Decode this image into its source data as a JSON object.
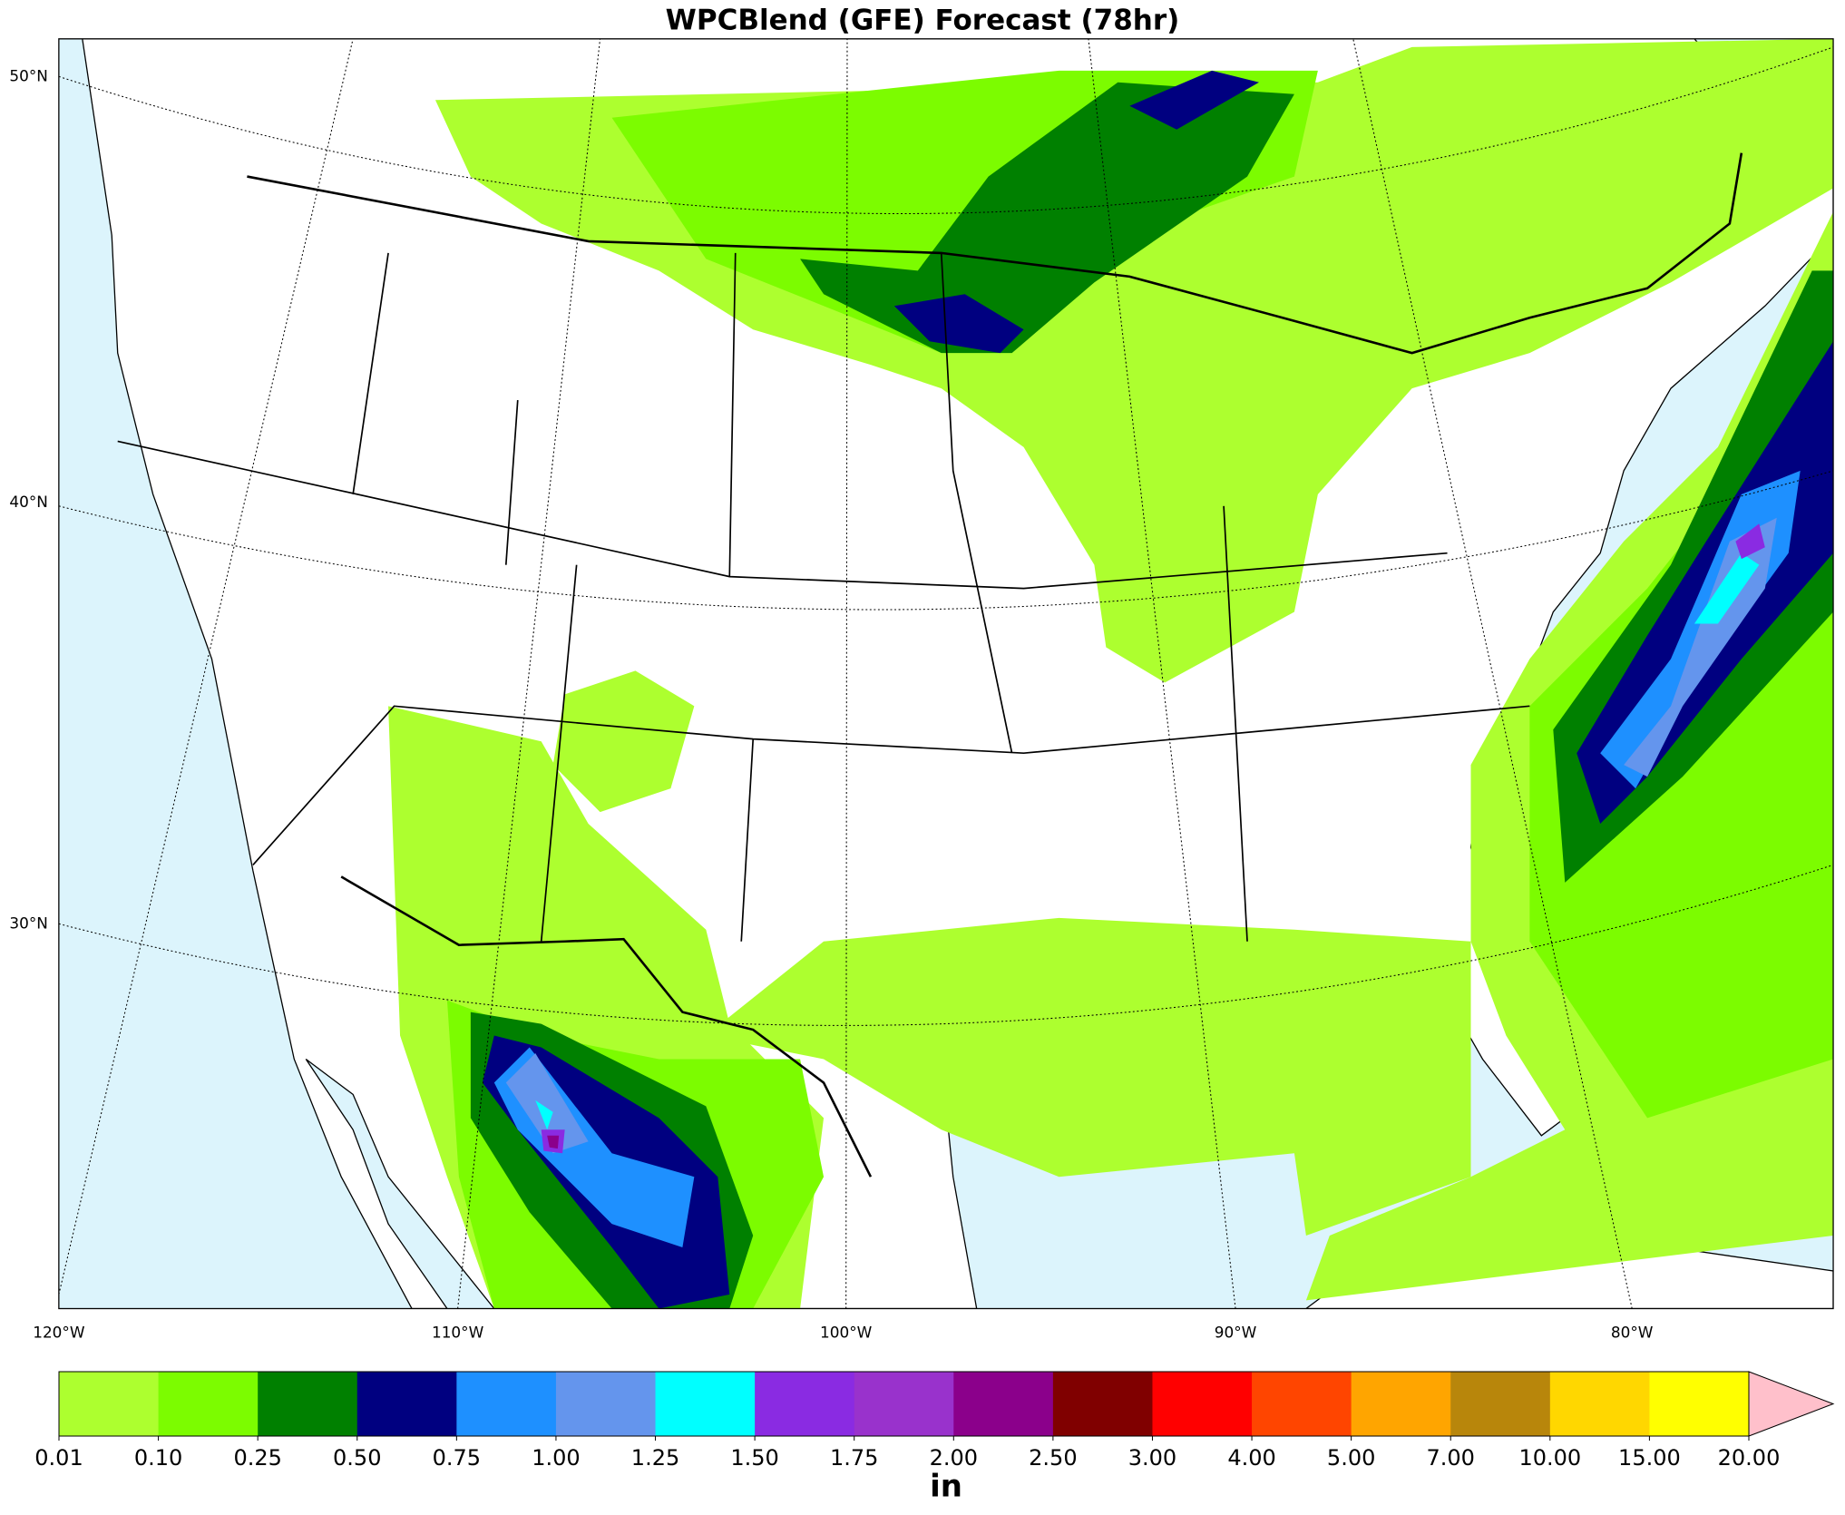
{
  "title": "WPCBlend (GFE) Forecast (78hr)",
  "map": {
    "lat_labels": [
      "50°N",
      "40°N",
      "30°N"
    ],
    "lon_labels": [
      "120°W",
      "110°W",
      "100°W",
      "90°W",
      "80°W"
    ]
  },
  "colorbar": {
    "ticks": [
      "0.01",
      "0.10",
      "0.25",
      "0.50",
      "0.75",
      "1.00",
      "1.25",
      "1.50",
      "1.75",
      "2.00",
      "2.50",
      "3.00",
      "4.00",
      "5.00",
      "7.00",
      "10.00",
      "15.00",
      "20.00"
    ],
    "colors": [
      "#adff2f",
      "#7cfc00",
      "#008000",
      "#000080",
      "#1e90ff",
      "#6495ed",
      "#00ffff",
      "#8a2be2",
      "#9932cc",
      "#8b008b",
      "#800000",
      "#ff0000",
      "#ff4500",
      "#ffa500",
      "#b8860b",
      "#ffd700",
      "#ffff00"
    ],
    "over_color": "#ffc0cb",
    "unit": "in"
  }
}
